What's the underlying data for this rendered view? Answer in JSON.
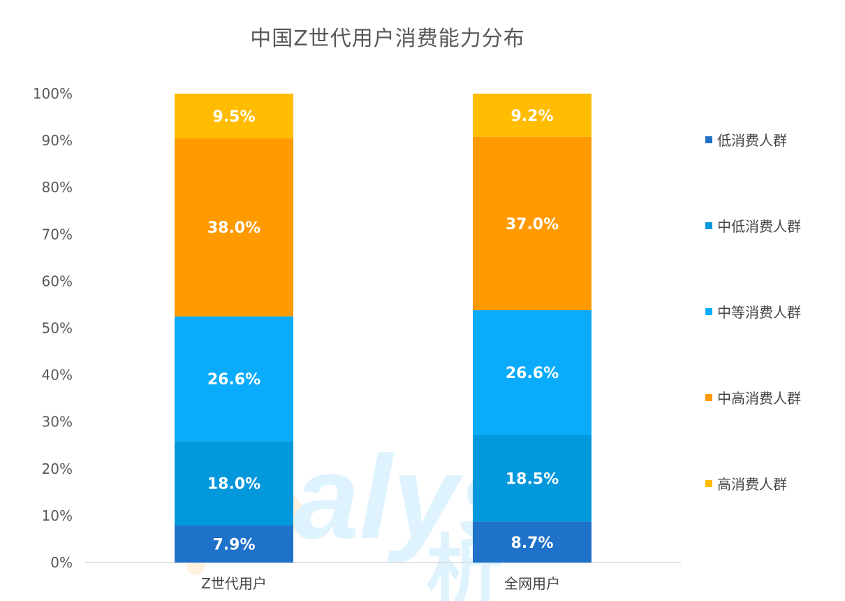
{
  "chart_data": {
    "type": "bar",
    "stacked": true,
    "title": "中国Z世代用户消费能力分布",
    "categories": [
      "Z世代用户",
      "全网用户"
    ],
    "series": [
      {
        "name": "低消费人群",
        "color": "#1F72C9",
        "values": [
          7.9,
          8.7
        ],
        "labels": [
          "7.9%",
          "8.7%"
        ]
      },
      {
        "name": "中低消费人群",
        "color": "#0397DC",
        "values": [
          18.0,
          18.5
        ],
        "labels": [
          "18.0%",
          "18.5%"
        ]
      },
      {
        "name": "中等消费人群",
        "color": "#0AABFB",
        "values": [
          26.6,
          26.6
        ],
        "labels": [
          "26.6%",
          "26.6%"
        ]
      },
      {
        "name": "中高消费人群",
        "color": "#FF9A00",
        "values": [
          38.0,
          37.0
        ],
        "labels": [
          "38.0%",
          "37.0%"
        ]
      },
      {
        "name": "高消费人群",
        "color": "#FFBC00",
        "values": [
          9.5,
          9.2
        ],
        "labels": [
          "9.5%",
          "9.2%"
        ]
      }
    ],
    "ylim": [
      0,
      100
    ],
    "yticks": [
      "0%",
      "10%",
      "20%",
      "30%",
      "40%",
      "50%",
      "60%",
      "70%",
      "80%",
      "90%",
      "100%"
    ],
    "legend_position": "right",
    "grid": false
  }
}
